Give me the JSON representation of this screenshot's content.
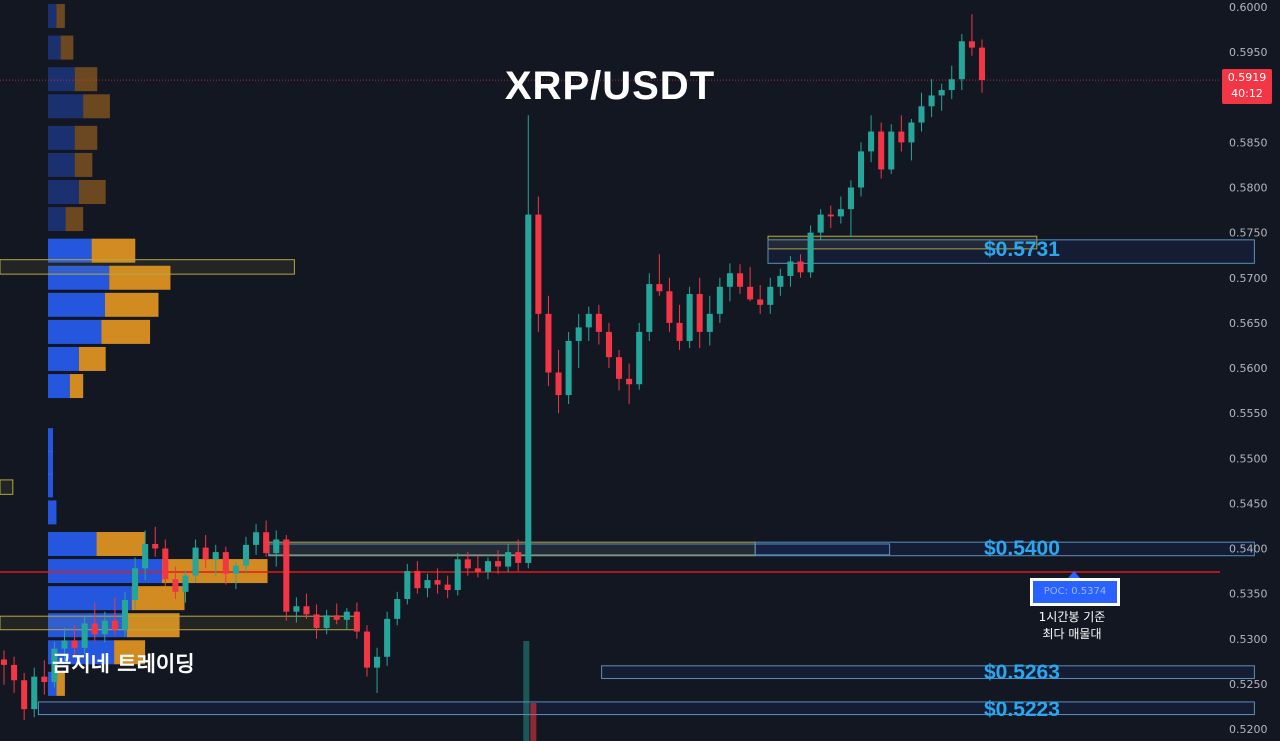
{
  "title": "XRP/USDT",
  "watermark": "곰지네 트레이딩",
  "current_price": {
    "price": "0.5919",
    "countdown": "40:12",
    "value": 0.5919
  },
  "poc": {
    "label": "POC: 0.5374",
    "value": 0.5374,
    "note_line1": "1시간봉 기준",
    "note_line2": "최다 매물대"
  },
  "levels": [
    {
      "label": "$0.5731",
      "value": 0.5731
    },
    {
      "label": "$0.5400",
      "value": 0.54
    },
    {
      "label": "$0.5263",
      "value": 0.5263
    },
    {
      "label": "$0.5223",
      "value": 0.5223
    }
  ],
  "colors": {
    "background": "#131722",
    "up": "#26a69a",
    "down": "#f23645",
    "poc_line": "#e01a1a",
    "level": "#29a8f0",
    "zone_yellow": "#b5a642",
    "vp_blue": "#2962ff",
    "vp_orange": "#f5a020"
  },
  "chart_data": {
    "type": "candlestick",
    "title": "XRP/USDT",
    "ylim": [
      0.52,
      0.6
    ],
    "y_ticks": [
      "0.6000",
      "0.5950",
      "0.5900",
      "0.5850",
      "0.5800",
      "0.5750",
      "0.5700",
      "0.5650",
      "0.5600",
      "0.5550",
      "0.5500",
      "0.5450",
      "0.5400",
      "0.5350",
      "0.5300",
      "0.5250",
      "0.5200"
    ],
    "y_tick_values": [
      0.6,
      0.595,
      0.59,
      0.585,
      0.58,
      0.575,
      0.57,
      0.565,
      0.56,
      0.555,
      0.55,
      0.545,
      0.54,
      0.535,
      0.53,
      0.525,
      0.52
    ],
    "grid": false,
    "candles": [
      [
        0.5277,
        0.5287,
        0.5249,
        0.5271
      ],
      [
        0.5271,
        0.528,
        0.524,
        0.5254
      ],
      [
        0.5254,
        0.5262,
        0.521,
        0.5222
      ],
      [
        0.5222,
        0.5268,
        0.5213,
        0.5258
      ],
      [
        0.5258,
        0.5276,
        0.5238,
        0.5252
      ],
      [
        0.5252,
        0.5297,
        0.5246,
        0.5289
      ],
      [
        0.5289,
        0.5312,
        0.5276,
        0.5298
      ],
      [
        0.5298,
        0.5315,
        0.5282,
        0.529
      ],
      [
        0.529,
        0.5325,
        0.5283,
        0.5317
      ],
      [
        0.5317,
        0.534,
        0.5297,
        0.5305
      ],
      [
        0.5305,
        0.533,
        0.5296,
        0.532
      ],
      [
        0.532,
        0.5346,
        0.5304,
        0.531
      ],
      [
        0.531,
        0.5352,
        0.5302,
        0.5343
      ],
      [
        0.5343,
        0.539,
        0.5332,
        0.5378
      ],
      [
        0.5378,
        0.542,
        0.5365,
        0.5405
      ],
      [
        0.5405,
        0.5424,
        0.5391,
        0.54
      ],
      [
        0.54,
        0.541,
        0.5358,
        0.5366
      ],
      [
        0.5366,
        0.538,
        0.5344,
        0.5352
      ],
      [
        0.5352,
        0.5376,
        0.534,
        0.537
      ],
      [
        0.537,
        0.541,
        0.5362,
        0.5401
      ],
      [
        0.5401,
        0.5415,
        0.5378,
        0.5388
      ],
      [
        0.5388,
        0.5404,
        0.537,
        0.5396
      ],
      [
        0.5396,
        0.5402,
        0.536,
        0.5372
      ],
      [
        0.5372,
        0.5385,
        0.5355,
        0.5381
      ],
      [
        0.5381,
        0.5413,
        0.5372,
        0.5404
      ],
      [
        0.5404,
        0.5427,
        0.5393,
        0.5418
      ],
      [
        0.5418,
        0.5431,
        0.5391,
        0.5395
      ],
      [
        0.5395,
        0.542,
        0.538,
        0.541
      ],
      [
        0.541,
        0.5415,
        0.532,
        0.533
      ],
      [
        0.533,
        0.5346,
        0.5318,
        0.5336
      ],
      [
        0.5336,
        0.535,
        0.5322,
        0.5327
      ],
      [
        0.5327,
        0.5338,
        0.53,
        0.5312
      ],
      [
        0.5312,
        0.5332,
        0.5305,
        0.5326
      ],
      [
        0.5326,
        0.5339,
        0.5316,
        0.5321
      ],
      [
        0.5321,
        0.5334,
        0.531,
        0.533
      ],
      [
        0.533,
        0.534,
        0.53,
        0.5308
      ],
      [
        0.5308,
        0.5315,
        0.5258,
        0.5268
      ],
      [
        0.5268,
        0.529,
        0.524,
        0.528
      ],
      [
        0.528,
        0.533,
        0.527,
        0.5322
      ],
      [
        0.5322,
        0.5352,
        0.5315,
        0.5344
      ],
      [
        0.5344,
        0.5383,
        0.5338,
        0.5375
      ],
      [
        0.5375,
        0.5386,
        0.535,
        0.5356
      ],
      [
        0.5356,
        0.5372,
        0.5346,
        0.5365
      ],
      [
        0.5365,
        0.5378,
        0.535,
        0.536
      ],
      [
        0.536,
        0.537,
        0.5345,
        0.5354
      ],
      [
        0.5354,
        0.5395,
        0.5348,
        0.5388
      ],
      [
        0.5388,
        0.5396,
        0.537,
        0.5378
      ],
      [
        0.5378,
        0.5392,
        0.5368,
        0.5374
      ],
      [
        0.5374,
        0.539,
        0.5366,
        0.5386
      ],
      [
        0.5386,
        0.5398,
        0.5372,
        0.538
      ],
      [
        0.538,
        0.5405,
        0.5374,
        0.5396
      ],
      [
        0.5396,
        0.541,
        0.5375,
        0.5384
      ],
      [
        0.5384,
        0.588,
        0.5378,
        0.577
      ],
      [
        0.577,
        0.579,
        0.564,
        0.566
      ],
      [
        0.566,
        0.568,
        0.558,
        0.5595
      ],
      [
        0.5595,
        0.562,
        0.555,
        0.557
      ],
      [
        0.557,
        0.564,
        0.556,
        0.563
      ],
      [
        0.563,
        0.566,
        0.56,
        0.5645
      ],
      [
        0.5645,
        0.5668,
        0.563,
        0.566
      ],
      [
        0.566,
        0.567,
        0.5626,
        0.564
      ],
      [
        0.564,
        0.565,
        0.56,
        0.5612
      ],
      [
        0.5612,
        0.562,
        0.5575,
        0.5588
      ],
      [
        0.5588,
        0.5605,
        0.556,
        0.5582
      ],
      [
        0.5582,
        0.565,
        0.5576,
        0.564
      ],
      [
        0.564,
        0.5705,
        0.563,
        0.5693
      ],
      [
        0.5693,
        0.5726,
        0.568,
        0.5685
      ],
      [
        0.5685,
        0.57,
        0.564,
        0.565
      ],
      [
        0.565,
        0.567,
        0.562,
        0.563
      ],
      [
        0.563,
        0.569,
        0.5622,
        0.5682
      ],
      [
        0.5682,
        0.57,
        0.5622,
        0.564
      ],
      [
        0.564,
        0.568,
        0.5625,
        0.566
      ],
      [
        0.566,
        0.57,
        0.565,
        0.569
      ],
      [
        0.569,
        0.5716,
        0.5674,
        0.5705
      ],
      [
        0.5705,
        0.5715,
        0.5682,
        0.569
      ],
      [
        0.569,
        0.5712,
        0.5674,
        0.5676
      ],
      [
        0.5676,
        0.5692,
        0.566,
        0.567
      ],
      [
        0.567,
        0.57,
        0.566,
        0.569
      ],
      [
        0.569,
        0.571,
        0.568,
        0.5702
      ],
      [
        0.5702,
        0.5724,
        0.569,
        0.5718
      ],
      [
        0.5718,
        0.5726,
        0.57,
        0.5706
      ],
      [
        0.5706,
        0.5758,
        0.57,
        0.575
      ],
      [
        0.575,
        0.5776,
        0.5742,
        0.577
      ],
      [
        0.577,
        0.578,
        0.5755,
        0.5768
      ],
      [
        0.5768,
        0.579,
        0.576,
        0.5776
      ],
      [
        0.5776,
        0.5808,
        0.5745,
        0.58
      ],
      [
        0.58,
        0.585,
        0.579,
        0.584
      ],
      [
        0.584,
        0.588,
        0.5828,
        0.5862
      ],
      [
        0.5862,
        0.5872,
        0.581,
        0.582
      ],
      [
        0.582,
        0.587,
        0.5815,
        0.5862
      ],
      [
        0.5862,
        0.588,
        0.584,
        0.585
      ],
      [
        0.585,
        0.5876,
        0.583,
        0.5872
      ],
      [
        0.5872,
        0.5905,
        0.5862,
        0.589
      ],
      [
        0.589,
        0.592,
        0.5878,
        0.5902
      ],
      [
        0.5902,
        0.5915,
        0.5885,
        0.5908
      ],
      [
        0.5908,
        0.5935,
        0.5898,
        0.592
      ],
      [
        0.592,
        0.597,
        0.5908,
        0.5962
      ],
      [
        0.5962,
        0.5992,
        0.5946,
        0.5955
      ],
      [
        0.5955,
        0.5964,
        0.5905,
        0.5919
      ]
    ],
    "volume_profile": [
      [
        0.599,
        0.0012,
        0.0012
      ],
      [
        0.5955,
        0.0018,
        0.0018
      ],
      [
        0.592,
        0.0038,
        0.0032
      ],
      [
        0.589,
        0.005,
        0.0038
      ],
      [
        0.5855,
        0.0038,
        0.0032
      ],
      [
        0.5825,
        0.0038,
        0.0025
      ],
      [
        0.5795,
        0.0044,
        0.0038
      ],
      [
        0.5765,
        0.0025,
        0.0025
      ],
      [
        0.573,
        0.0062,
        0.0062
      ],
      [
        0.57,
        0.0087,
        0.0087
      ],
      [
        0.567,
        0.0081,
        0.0076
      ],
      [
        0.564,
        0.0076,
        0.0069
      ],
      [
        0.561,
        0.0044,
        0.0038
      ],
      [
        0.558,
        0.0031,
        0.0019
      ],
      [
        0.552,
        0.0006,
        0
      ],
      [
        0.5495,
        0.0006,
        0
      ],
      [
        0.547,
        0.0006,
        0
      ],
      [
        0.544,
        0.0012,
        0
      ],
      [
        0.5405,
        0.0069,
        0.0069
      ],
      [
        0.5375,
        0.0162,
        0.015
      ],
      [
        0.5345,
        0.0119,
        0.0075
      ],
      [
        0.5315,
        0.0112,
        0.0075
      ],
      [
        0.5285,
        0.0094,
        0.0044
      ],
      [
        0.525,
        0.0012,
        0.0012
      ]
    ],
    "zones": [
      [
        0.5704,
        0.572,
        0,
        0.523
      ],
      [
        0.546,
        0.5476,
        0,
        0.501
      ],
      [
        0.5392,
        0.5407,
        0.521,
        0.559
      ],
      [
        0.531,
        0.5325,
        0,
        0.528
      ],
      [
        0.5732,
        0.5746,
        0.56,
        0.581
      ]
    ],
    "level_boxes": [
      [
        0.5716,
        0.5742,
        0.56,
        0.598
      ],
      [
        0.5392,
        0.5407,
        0.559,
        0.598
      ],
      [
        0.5393,
        0.5405,
        0.521,
        0.5695
      ],
      [
        0.5256,
        0.527,
        0.547,
        0.598
      ],
      [
        0.5216,
        0.523,
        0.503,
        0.598
      ]
    ]
  }
}
